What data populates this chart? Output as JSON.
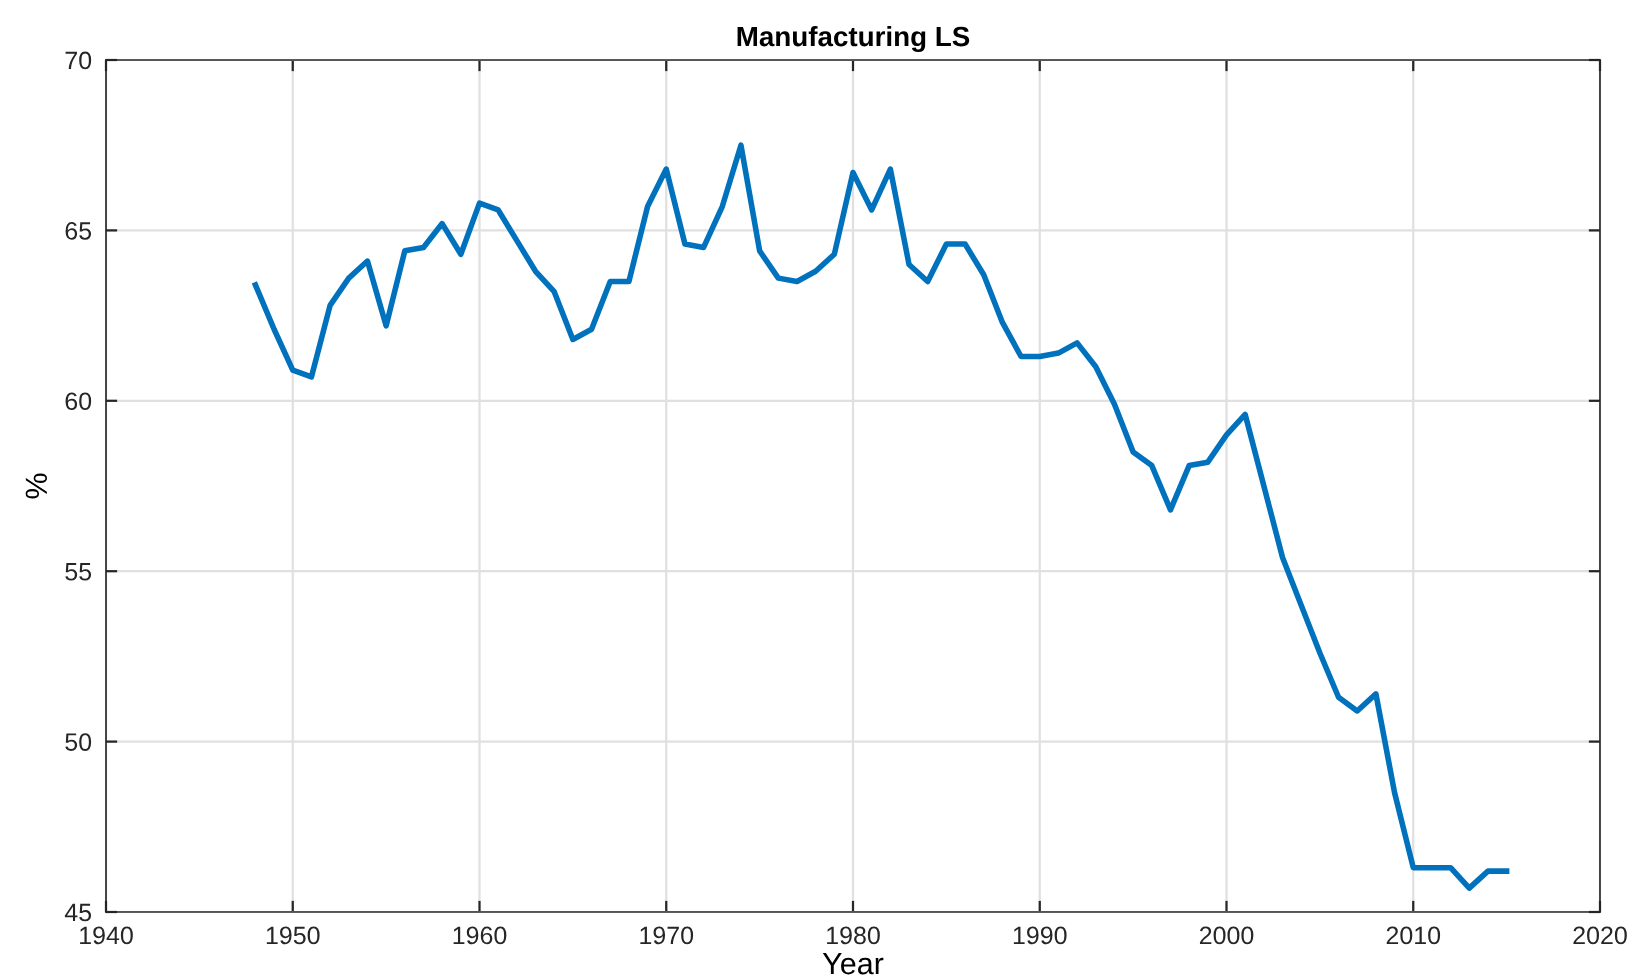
{
  "chart_data": {
    "type": "line",
    "title": "Manufacturing LS",
    "xlabel": "Year",
    "ylabel": "%",
    "x": [
      1948,
      1949,
      1950,
      1951,
      1952,
      1953,
      1954,
      1955,
      1956,
      1957,
      1958,
      1959,
      1960,
      1961,
      1962,
      1963,
      1964,
      1965,
      1966,
      1967,
      1968,
      1969,
      1970,
      1971,
      1972,
      1973,
      1974,
      1975,
      1976,
      1977,
      1978,
      1979,
      1980,
      1981,
      1982,
      1983,
      1984,
      1985,
      1986,
      1987,
      1988,
      1989,
      1990,
      1991,
      1992,
      1993,
      1994,
      1995,
      1996,
      1997,
      1998,
      1999,
      2000,
      2001,
      2002,
      2003,
      2004,
      2005,
      2006,
      2007,
      2008,
      2009,
      2010,
      2011,
      2012,
      2013,
      2014,
      2015
    ],
    "series": [
      {
        "color": "#0072bd",
        "values": [
          63.4,
          62.1,
          60.9,
          60.7,
          62.8,
          63.6,
          64.1,
          62.2,
          64.4,
          64.5,
          65.2,
          64.3,
          65.8,
          65.6,
          64.7,
          63.8,
          63.2,
          61.8,
          62.1,
          63.5,
          63.5,
          65.7,
          66.8,
          64.6,
          64.5,
          65.7,
          67.5,
          64.4,
          63.6,
          63.5,
          63.8,
          64.3,
          66.7,
          65.6,
          66.8,
          64.0,
          63.5,
          64.6,
          64.6,
          63.7,
          62.3,
          61.3,
          61.3,
          61.4,
          61.7,
          61.0,
          59.9,
          58.5,
          58.1,
          56.8,
          58.1,
          58.2,
          59.0,
          59.6,
          57.5,
          55.4,
          54.0,
          52.6,
          51.3,
          50.9,
          51.4,
          48.5,
          46.3,
          46.3,
          46.3,
          45.7,
          46.2,
          46.2
        ]
      }
    ],
    "xlim": [
      1940,
      2020
    ],
    "xticks": [
      1940,
      1950,
      1960,
      1970,
      1980,
      1990,
      2000,
      2010,
      2020
    ],
    "ylim": [
      45,
      70
    ],
    "yticks": [
      45,
      50,
      55,
      60,
      65,
      70
    ],
    "grid": true,
    "marker": "none",
    "line_style": "solid"
  }
}
